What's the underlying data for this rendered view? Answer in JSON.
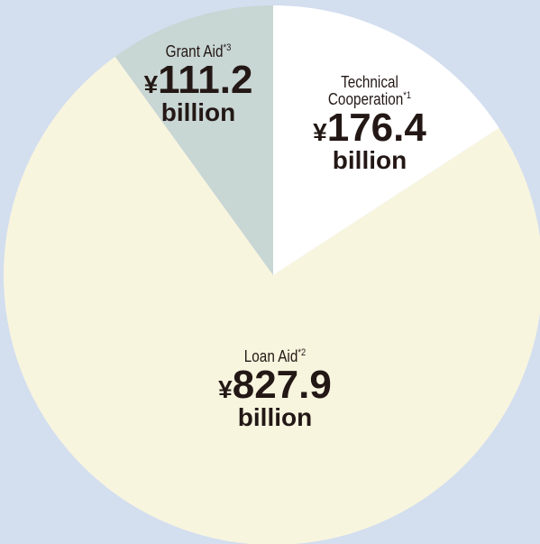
{
  "chart_data": {
    "type": "pie",
    "categories": [
      "Technical Cooperation",
      "Loan Aid",
      "Grant Aid"
    ],
    "notes": [
      "*1",
      "*2",
      "*3"
    ],
    "values": [
      176.4,
      827.9,
      111.2
    ],
    "colors": [
      "#ffffff",
      "#f8f5df",
      "#c8d6d4"
    ],
    "currency": "¥",
    "unit": "billion",
    "background": "#d3deef"
  }
}
